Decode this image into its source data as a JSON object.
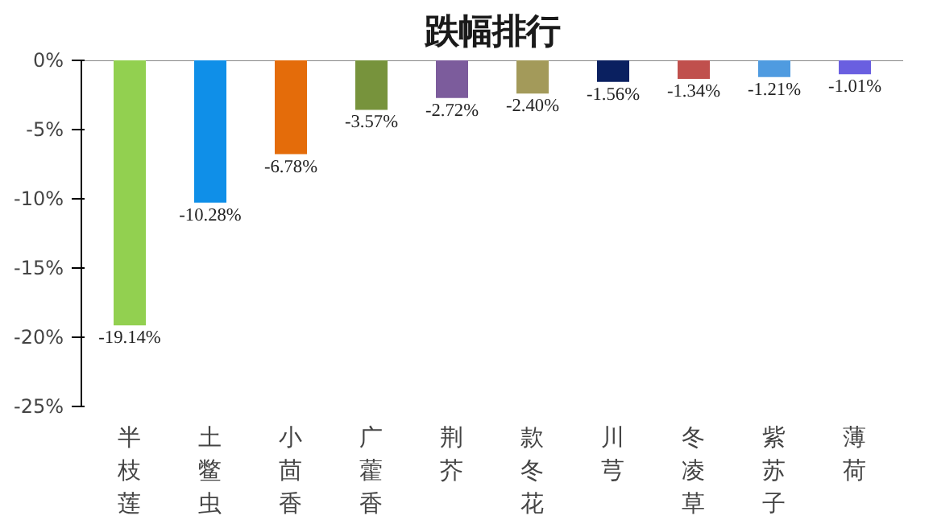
{
  "chart_data": {
    "type": "bar",
    "title": "跌幅排行",
    "categories": [
      "半枝莲",
      "土鳖虫",
      "小茴香",
      "广藿香",
      "荆芥",
      "款冬花",
      "川芎",
      "冬凌草",
      "紫苏子",
      "薄荷"
    ],
    "values": [
      -19.14,
      -10.28,
      -6.78,
      -3.57,
      -2.72,
      -2.4,
      -1.56,
      -1.34,
      -1.21,
      -1.01
    ],
    "colors": [
      "#92d050",
      "#0f8fe8",
      "#e46c0a",
      "#77933c",
      "#7c5c9c",
      "#a39a5a",
      "#0a2060",
      "#c0504d",
      "#4f9be0",
      "#6a5fe0"
    ],
    "value_labels": [
      "-19.14%",
      "-10.28%",
      "-6.78%",
      "-3.57%",
      "-2.72%",
      "-2.40%",
      "-1.56%",
      "-1.34%",
      "-1.21%",
      "-1.01%"
    ],
    "ylim": [
      -25,
      0
    ],
    "yticks": [
      {
        "value": -25,
        "label": "-25%"
      },
      {
        "value": -20,
        "label": "-20%"
      },
      {
        "value": -15,
        "label": "-15%"
      },
      {
        "value": -10,
        "label": "-10%"
      },
      {
        "value": -5,
        "label": "-5%"
      },
      {
        "value": 0,
        "label": "0%"
      }
    ],
    "grid": false
  }
}
